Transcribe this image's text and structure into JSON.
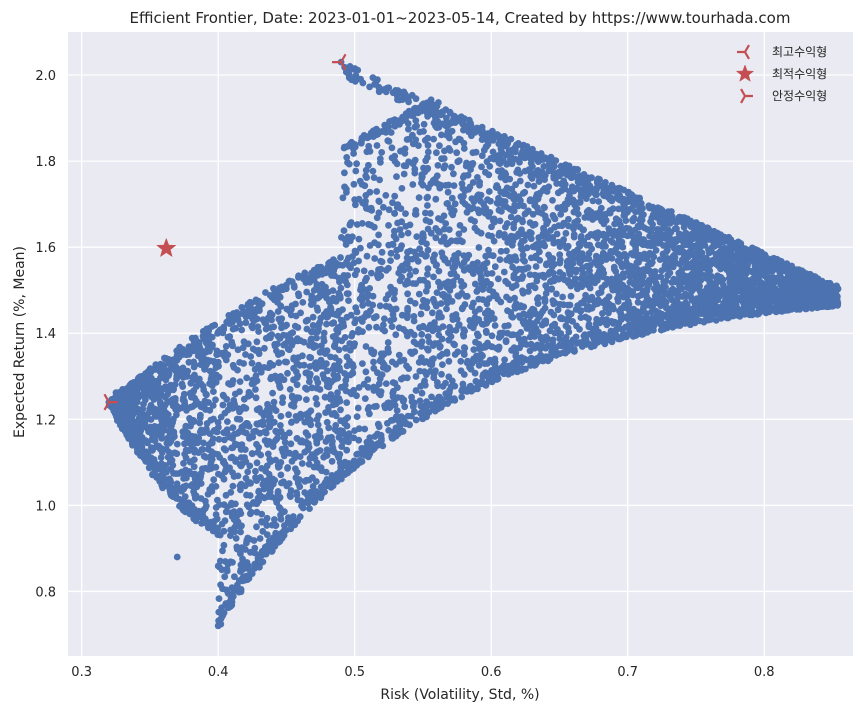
{
  "chart_data": {
    "type": "scatter",
    "title": "Efficient Frontier,  Date: 2023-01-01~2023-05-14, Created by https://www.tourhada.com",
    "xlabel": "Risk (Volatility, Std, %)",
    "ylabel": "Expected Return (%, Mean)",
    "xlim": [
      0.29,
      0.865
    ],
    "ylim": [
      0.65,
      2.1
    ],
    "xticks": [
      0.3,
      0.4,
      0.5,
      0.6,
      0.7,
      0.8
    ],
    "xtick_labels": [
      "0.3",
      "0.4",
      "0.5",
      "0.6",
      "0.7",
      "0.8"
    ],
    "yticks": [
      0.8,
      1.0,
      1.2,
      1.4,
      1.6,
      1.8,
      2.0
    ],
    "ytick_labels": [
      "0.8",
      "1.0",
      "1.2",
      "1.4",
      "1.6",
      "1.8",
      "2.0"
    ],
    "grid": true,
    "legend_position": "top-right",
    "colors": {
      "scatter": "#4c72b0",
      "markers": "#c44e52",
      "plot_background": "#eaeaf2",
      "grid": "#ffffff"
    },
    "portfolio_cloud": {
      "description_points": [
        {
          "x": 0.32,
          "y": 1.24
        },
        {
          "x": 0.362,
          "y": 1.597
        },
        {
          "x": 0.49,
          "y": 2.03
        },
        {
          "x": 0.853,
          "y": 1.51
        },
        {
          "x": 0.4,
          "y": 0.72
        },
        {
          "x": 0.37,
          "y": 0.88
        }
      ]
    },
    "special_points": [
      {
        "name": "최고수익형",
        "marker": "tri_left",
        "x": 0.49,
        "y": 2.03
      },
      {
        "name": "최적수익형",
        "marker": "star",
        "x": 0.362,
        "y": 1.597
      },
      {
        "name": "안정수익형",
        "marker": "tri_right",
        "x": 0.32,
        "y": 1.24
      }
    ]
  }
}
